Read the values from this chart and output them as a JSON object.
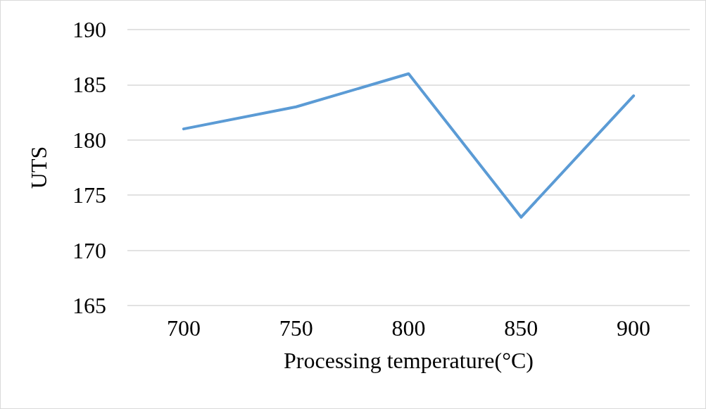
{
  "chart_data": {
    "type": "line",
    "xlabel": "Processing temperature(°C)",
    "ylabel": "UTS",
    "categories": [
      "700",
      "750",
      "800",
      "850",
      "900"
    ],
    "series": [
      {
        "color": "#5b9bd5",
        "values": [
          181,
          183,
          186,
          173,
          184
        ]
      }
    ],
    "ylim": [
      165,
      190
    ],
    "yticks": [
      165,
      170,
      175,
      180,
      185,
      190
    ],
    "grid": "y",
    "marker": "none",
    "line_style": "solid"
  }
}
